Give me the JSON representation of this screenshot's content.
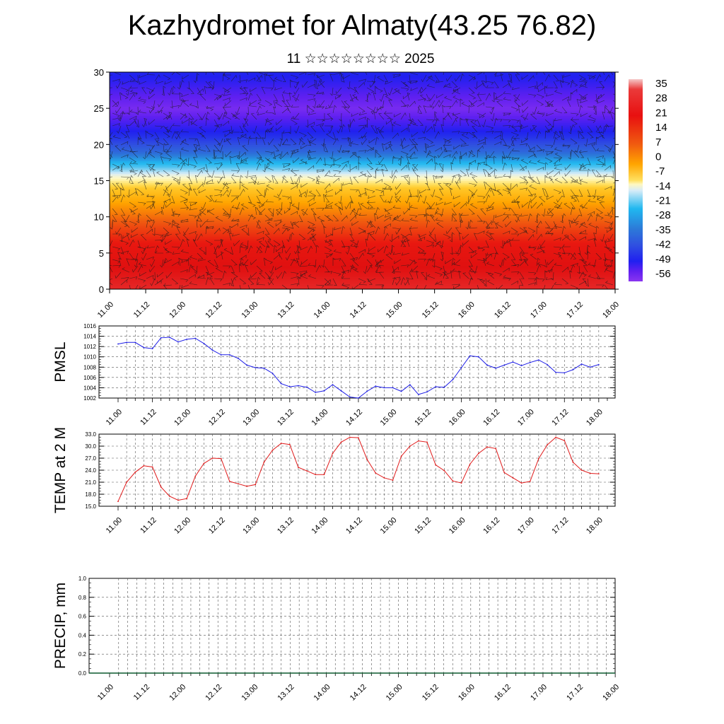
{
  "title": "Kazhydromet for Almaty(43.25 76.82)",
  "subtitle": "11 ☆☆☆☆☆☆☆☆ 2025",
  "time_ticks": [
    "11.00",
    "11.12",
    "12.00",
    "12.12",
    "13.00",
    "13.12",
    "14.00",
    "14.12",
    "15.00",
    "15.12",
    "16.00",
    "16.12",
    "17.00",
    "17.12",
    "18.00"
  ],
  "colors": {
    "pmsl_line": "#1e1ee6",
    "temp_line": "#e01a1a"
  },
  "chart_data": [
    {
      "type": "heatmap",
      "name": "cross-section",
      "xlim": [
        0,
        14
      ],
      "ylim": [
        0,
        30
      ],
      "y_ticks": [
        0,
        5,
        10,
        15,
        20,
        25,
        30
      ],
      "colorbar_labels": [
        "35",
        "28",
        "21",
        "14",
        "7",
        "0",
        "-7",
        "-14",
        "-21",
        "-28",
        "-35",
        "-42",
        "-49",
        "-56"
      ],
      "colorbar_range": [
        -63,
        42
      ],
      "level_temperature_profile": [
        [
          0,
          32
        ],
        [
          3,
          28
        ],
        [
          6,
          22
        ],
        [
          9,
          15
        ],
        [
          12,
          7
        ],
        [
          14,
          0
        ],
        [
          15.5,
          -8
        ],
        [
          17,
          -25
        ],
        [
          19,
          -38
        ],
        [
          21,
          -46
        ],
        [
          23,
          -53
        ],
        [
          25,
          -60
        ],
        [
          27,
          -55
        ],
        [
          29,
          -50
        ],
        [
          30,
          -48
        ]
      ]
    },
    {
      "type": "line",
      "name": "PMSL",
      "ylabel": "PMSL",
      "ylim": [
        1002,
        1016
      ],
      "y_ticks": [
        1002,
        1004,
        1006,
        1008,
        1010,
        1012,
        1014,
        1016
      ],
      "y_tick_labels": [
        "1002",
        "1004",
        "1006",
        "1008",
        "1010",
        "1012",
        "1014",
        "1016"
      ],
      "series": [
        {
          "values": [
            1012.5,
            1012.8,
            1012.8,
            1011.8,
            1011.6,
            1013.7,
            1013.8,
            1012.9,
            1013.4,
            1013.6,
            1012.6,
            1011.3,
            1010.4,
            1010.4,
            1009.7,
            1008.4,
            1007.9,
            1007.8,
            1006.8,
            1004.8,
            1004.2,
            1004.4,
            1004.1,
            1003.1,
            1003.4,
            1004.6,
            1003.4,
            1002.2,
            1002.0,
            1003.3,
            1004.3,
            1004.0,
            1004.0,
            1003.3,
            1004.6,
            1002.7,
            1003.2,
            1004.2,
            1004.1,
            1005.6,
            1007.9,
            1010.2,
            1010.0,
            1008.4,
            1007.8,
            1008.4,
            1009.0,
            1008.3,
            1008.9,
            1009.4,
            1008.5,
            1007.0,
            1006.9,
            1007.5,
            1008.6,
            1008.0,
            1008.5
          ]
        }
      ]
    },
    {
      "type": "line",
      "name": "TEMP at 2 M",
      "ylabel": "TEMP at 2 M",
      "ylim": [
        15,
        33
      ],
      "y_ticks": [
        15,
        18,
        21,
        24,
        27,
        30,
        33
      ],
      "y_tick_labels": [
        "15.0",
        "18.0",
        "21.0",
        "24.0",
        "27.0",
        "30.0",
        "33.0"
      ],
      "series": [
        {
          "values": [
            16.2,
            21.0,
            23.5,
            25.1,
            24.8,
            19.8,
            17.5,
            16.5,
            16.9,
            22.5,
            25.7,
            27.0,
            26.9,
            21.2,
            20.6,
            20.0,
            20.4,
            26.0,
            29.0,
            30.7,
            30.4,
            24.7,
            23.8,
            22.9,
            22.9,
            28.2,
            31.0,
            32.2,
            32.1,
            26.7,
            23.3,
            22.1,
            21.5,
            27.5,
            30.0,
            31.3,
            31.0,
            25.3,
            23.9,
            21.3,
            20.8,
            25.5,
            28.2,
            29.8,
            29.4,
            23.4,
            22.1,
            20.8,
            21.2,
            26.9,
            30.3,
            32.2,
            31.4,
            26.0,
            24.0,
            23.2,
            23.1
          ]
        }
      ]
    },
    {
      "type": "bar",
      "name": "PRECIP, mm",
      "ylabel": "PRECIP, mm",
      "ylim": [
        0,
        1
      ],
      "y_ticks": [
        0,
        0.2,
        0.4,
        0.6,
        0.8,
        1.0
      ],
      "y_tick_labels": [
        "0.0",
        "0.2",
        "0.4",
        "0.6",
        "0.8",
        "1.0"
      ],
      "series": [
        {
          "values": []
        }
      ]
    }
  ]
}
